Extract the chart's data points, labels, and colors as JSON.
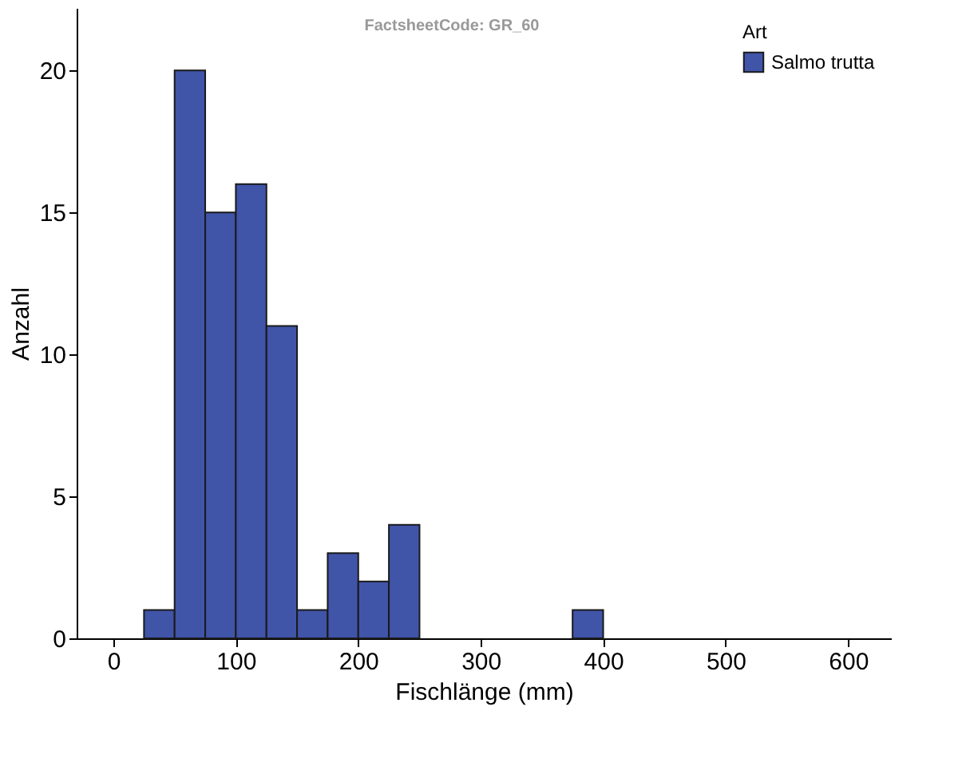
{
  "chart_data": {
    "type": "histogram",
    "xlabel": "Fischlänge (mm)",
    "ylabel": "Anzahl",
    "legend_title": "Art",
    "annotations": [
      "FactsheetCode: GR_60"
    ],
    "bins": [
      25,
      50,
      75,
      100,
      125,
      150,
      175,
      200,
      225,
      250,
      275,
      300,
      325,
      350,
      375,
      400
    ],
    "series": [
      {
        "name": "Salmo trutta",
        "color": "#4054a8",
        "values": [
          1,
          20,
          15,
          16,
          11,
          1,
          3,
          2,
          4,
          0,
          0,
          0,
          0,
          0,
          1
        ]
      }
    ],
    "xlim": [
      -30,
      635
    ],
    "xticks": [
      0,
      100,
      200,
      300,
      400,
      500,
      600
    ],
    "ylim": [
      0,
      22.2
    ],
    "yticks": [
      0,
      5,
      10,
      15,
      20
    ],
    "grid": false,
    "legend": "top right"
  }
}
